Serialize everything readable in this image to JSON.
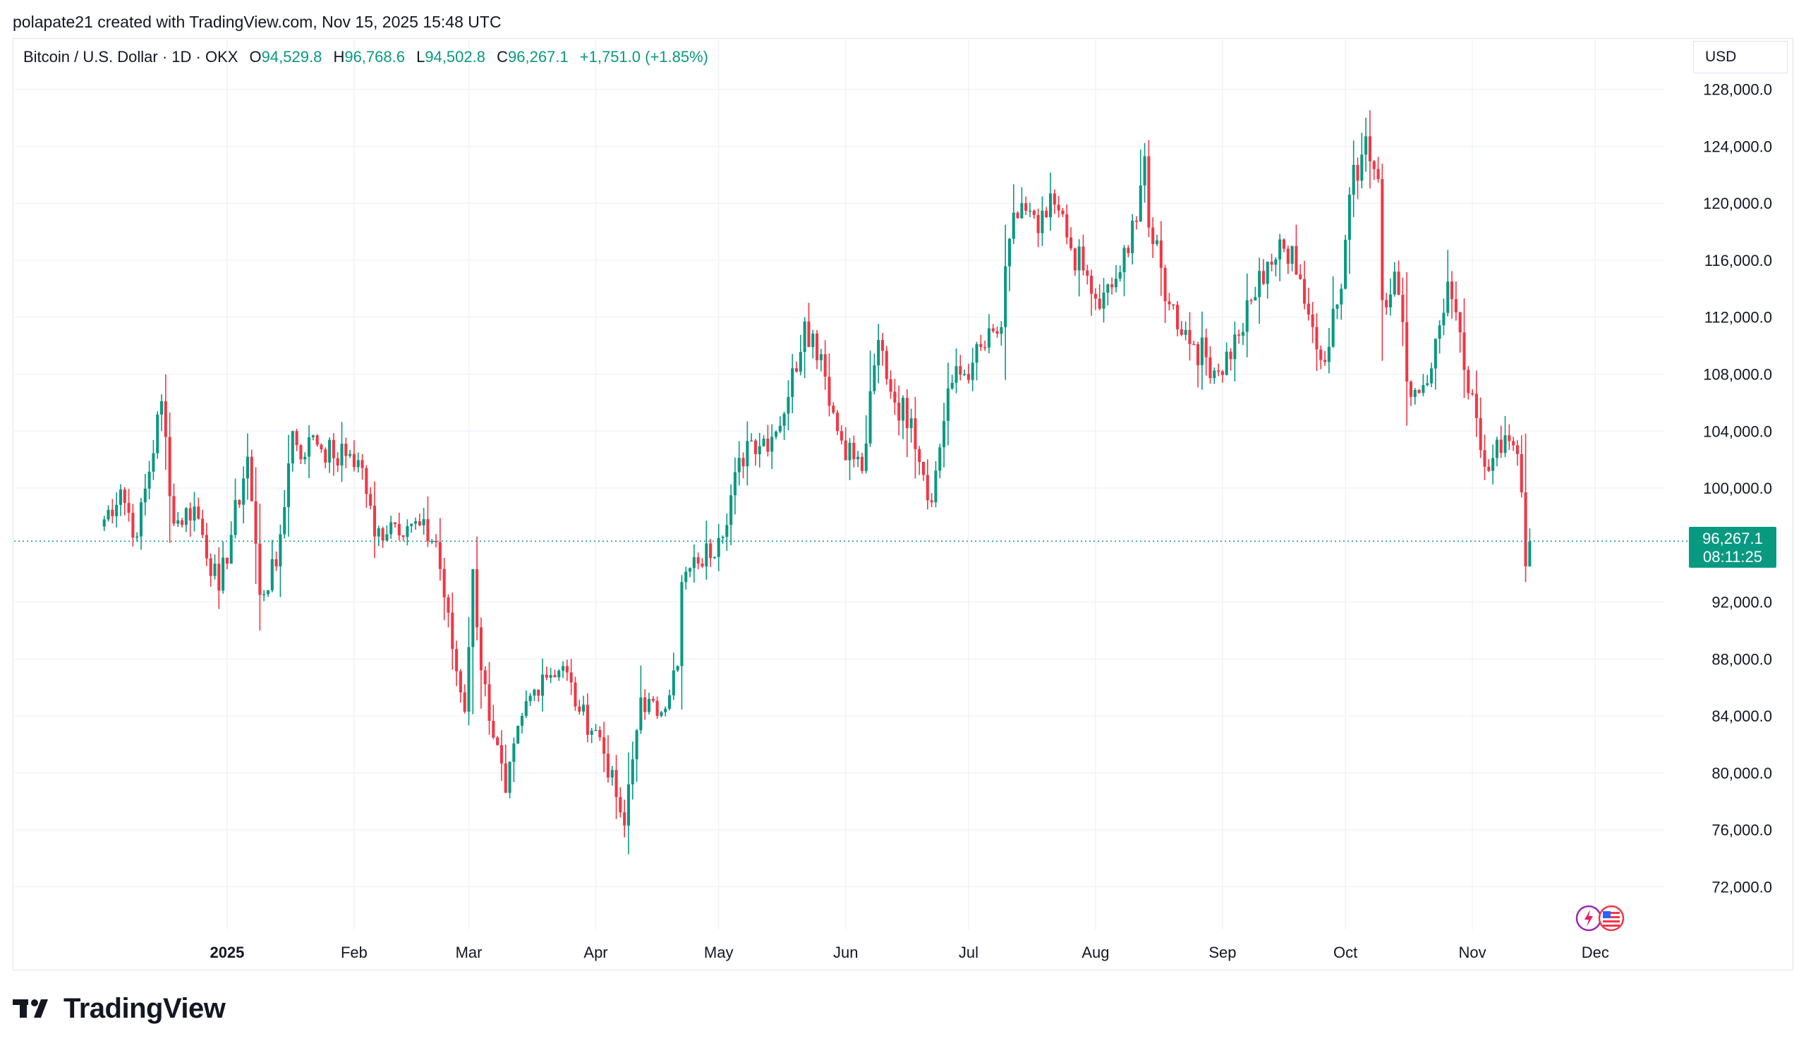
{
  "header": {
    "attribution": "polapate21 created with TradingView.com, Nov 15, 2025 15:48 UTC"
  },
  "legend": {
    "symbol": "Bitcoin / U.S. Dollar · 1D · OKX",
    "open_label": "O",
    "open": "94,529.8",
    "high_label": "H",
    "high": "96,768.6",
    "low_label": "L",
    "low": "94,502.8",
    "close_label": "C",
    "close": "96,267.1",
    "change": "+1,751.0 (+1.85%)"
  },
  "currency": "USD",
  "price_tag": {
    "price": "96,267.1",
    "countdown": "08:11:25"
  },
  "brand": {
    "name": "TradingView"
  },
  "colors": {
    "up": "#089981",
    "down": "#f23645",
    "grid": "#f0f3fa",
    "axis_text": "#131722"
  },
  "chart_data": {
    "type": "candlestick",
    "y_ticks": [
      "128,000.0",
      "124,000.0",
      "120,000.0",
      "116,000.0",
      "112,000.0",
      "108,000.0",
      "104,000.0",
      "100,000.0",
      "92,000.0",
      "88,000.0",
      "84,000.0",
      "80,000.0",
      "76,000.0",
      "72,000.0"
    ],
    "y_tick_values": [
      128000,
      124000,
      120000,
      116000,
      112000,
      108000,
      104000,
      100000,
      92000,
      88000,
      84000,
      80000,
      76000,
      72000
    ],
    "x_ticks": [
      "2025",
      "Feb",
      "Mar",
      "Apr",
      "May",
      "Jun",
      "Jul",
      "Aug",
      "Sep",
      "Oct",
      "Nov",
      "Dec"
    ],
    "x_tick_dates": [
      "2025-01-01",
      "2025-02-01",
      "2025-03-01",
      "2025-04-01",
      "2025-05-01",
      "2025-06-01",
      "2025-07-01",
      "2025-08-01",
      "2025-09-01",
      "2025-10-01",
      "2025-11-01",
      "2025-12-01"
    ],
    "ylim": [
      69000,
      131500
    ],
    "xlim": [
      "2024-11-10",
      "2025-12-18"
    ],
    "last_price": 96267.1,
    "closes": [
      [
        "2024-12-01",
        97300
      ],
      [
        "2024-12-06",
        99900
      ],
      [
        "2024-12-10",
        96600
      ],
      [
        "2024-12-16",
        106100
      ],
      [
        "2024-12-19",
        97500
      ],
      [
        "2024-12-24",
        98700
      ],
      [
        "2024-12-30",
        92800
      ],
      [
        "2025-01-06",
        102200
      ],
      [
        "2025-01-09",
        92500
      ],
      [
        "2025-01-13",
        94500
      ],
      [
        "2025-01-17",
        104000
      ],
      [
        "2025-01-20",
        102200
      ],
      [
        "2025-01-22",
        103700
      ],
      [
        "2025-01-27",
        102100
      ],
      [
        "2025-01-31",
        102400
      ],
      [
        "2025-02-03",
        101400
      ],
      [
        "2025-02-06",
        96600
      ],
      [
        "2025-02-10",
        97600
      ],
      [
        "2025-02-15",
        97500
      ],
      [
        "2025-02-21",
        96200
      ],
      [
        "2025-02-25",
        88700
      ],
      [
        "2025-02-28",
        84300
      ],
      [
        "2025-03-02",
        94300
      ],
      [
        "2025-03-04",
        87200
      ],
      [
        "2025-03-10",
        78600
      ],
      [
        "2025-03-14",
        84000
      ],
      [
        "2025-03-19",
        86900
      ],
      [
        "2025-03-24",
        87500
      ],
      [
        "2025-03-28",
        84300
      ],
      [
        "2025-04-02",
        82500
      ],
      [
        "2025-04-06",
        78300
      ],
      [
        "2025-04-08",
        76300
      ],
      [
        "2025-04-12",
        85300
      ],
      [
        "2025-04-16",
        84000
      ],
      [
        "2025-04-21",
        87500
      ],
      [
        "2025-04-22",
        93400
      ],
      [
        "2025-04-26",
        94700
      ],
      [
        "2025-05-01",
        96500
      ],
      [
        "2025-05-08",
        103300
      ],
      [
        "2025-05-14",
        103600
      ],
      [
        "2025-05-18",
        106400
      ],
      [
        "2025-05-22",
        111700
      ],
      [
        "2025-05-26",
        109400
      ],
      [
        "2025-05-30",
        104000
      ],
      [
        "2025-06-05",
        101200
      ],
      [
        "2025-06-09",
        110400
      ],
      [
        "2025-06-13",
        106000
      ],
      [
        "2025-06-17",
        104900
      ],
      [
        "2025-06-22",
        99000
      ],
      [
        "2025-06-26",
        107000
      ],
      [
        "2025-07-02",
        108800
      ],
      [
        "2025-07-09",
        111300
      ],
      [
        "2025-07-11",
        117500
      ],
      [
        "2025-07-14",
        120000
      ],
      [
        "2025-07-18",
        117900
      ],
      [
        "2025-07-22",
        119900
      ],
      [
        "2025-07-25",
        117600
      ],
      [
        "2025-08-01",
        113300
      ],
      [
        "2025-08-02",
        112600
      ],
      [
        "2025-08-05",
        114100
      ],
      [
        "2025-08-09",
        116500
      ],
      [
        "2025-08-13",
        123300
      ],
      [
        "2025-08-14",
        118300
      ],
      [
        "2025-08-19",
        112900
      ],
      [
        "2025-08-25",
        110100
      ],
      [
        "2025-08-31",
        108200
      ],
      [
        "2025-09-05",
        110700
      ],
      [
        "2025-09-12",
        115900
      ],
      [
        "2025-09-18",
        117000
      ],
      [
        "2025-09-25",
        109000
      ],
      [
        "2025-09-30",
        114000
      ],
      [
        "2025-10-02",
        120600
      ],
      [
        "2025-10-06",
        124700
      ],
      [
        "2025-10-09",
        121700
      ],
      [
        "2025-10-10",
        113200
      ],
      [
        "2025-10-13",
        115200
      ],
      [
        "2025-10-17",
        106400
      ],
      [
        "2025-10-22",
        108400
      ],
      [
        "2025-10-26",
        114500
      ],
      [
        "2025-10-30",
        108300
      ],
      [
        "2025-11-04",
        101500
      ],
      [
        "2025-11-07",
        103400
      ],
      [
        "2025-11-11",
        103000
      ],
      [
        "2025-11-13",
        99700
      ],
      [
        "2025-11-14",
        94500
      ],
      [
        "2025-11-15",
        96267.1
      ]
    ]
  }
}
